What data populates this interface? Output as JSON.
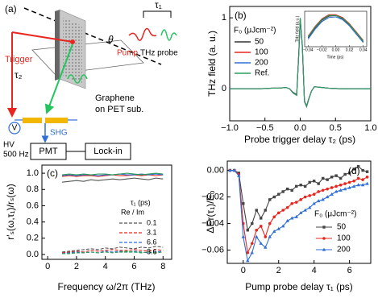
{
  "diagram": {
    "panel_label": "(a)",
    "tau1": "τ₁",
    "theta": "θ",
    "pump": "Pump",
    "thz_probe": "THz probe",
    "trigger": "Trigger",
    "tau2": "τ₂",
    "sample": [
      "Graphene",
      "on PET sub."
    ],
    "shg": "SHG",
    "voltage": "V",
    "hv": "HV",
    "frequency": "500 Hz",
    "pmt": "PMT",
    "lockin": "Lock-in"
  },
  "chart_data": [
    {
      "type": "line",
      "panel_label": "(b)",
      "xlabel": "Probe trigger delay τ₂ (ps)",
      "ylabel": "THz field (a. u.)",
      "legend_title": "F₀ (μJcm⁻²)",
      "x": [
        -1.0,
        -0.8,
        -0.6,
        -0.4,
        -0.3,
        -0.2,
        -0.15,
        -0.1,
        -0.05,
        -0.02,
        0,
        0.03,
        0.06,
        0.09,
        0.12,
        0.16,
        0.2,
        0.3,
        0.4,
        0.6,
        0.8,
        1.0
      ],
      "series": [
        {
          "name": "50",
          "color": "#333333",
          "values": [
            0,
            0,
            0,
            0.01,
            0.01,
            0.02,
            0,
            -0.05,
            -0.08,
            0.52,
            0.99,
            0.6,
            -0.17,
            -0.24,
            -0.14,
            -0.03,
            0.03,
            0.02,
            0.01,
            0,
            0,
            0
          ]
        },
        {
          "name": "100",
          "color": "#e8261f",
          "values": [
            0,
            0,
            0,
            0.01,
            0.01,
            0.02,
            0,
            -0.06,
            -0.09,
            0.5,
            0.98,
            0.6,
            -0.18,
            -0.25,
            -0.15,
            -0.03,
            0.03,
            0.02,
            0.01,
            0,
            0,
            0
          ]
        },
        {
          "name": "200",
          "color": "#2f6fd6",
          "values": [
            0,
            0,
            0,
            0.01,
            0.01,
            0.02,
            0,
            -0.06,
            -0.09,
            0.49,
            0.97,
            0.59,
            -0.18,
            -0.25,
            -0.15,
            -0.03,
            0.03,
            0.02,
            0.01,
            0,
            0,
            0
          ]
        },
        {
          "name": "Ref.",
          "color": "#2a9d5c",
          "values": [
            0,
            0,
            0,
            0.01,
            0.01,
            0.02,
            0,
            -0.06,
            -0.09,
            0.5,
            1.0,
            0.62,
            -0.18,
            -0.25,
            -0.15,
            -0.03,
            0.03,
            0.02,
            0.01,
            0,
            0,
            0
          ]
        }
      ],
      "xlim": [
        -1.0,
        1.0
      ],
      "xticks": [
        {
          "value": -1,
          "label": "−1.0"
        },
        {
          "value": -0.5,
          "label": "−0.5"
        },
        {
          "value": 0,
          "label": "0.0"
        },
        {
          "value": 0.5,
          "label": "0.5"
        },
        {
          "value": 1,
          "label": "1.0"
        }
      ],
      "ylim": [
        -0.45,
        1.16
      ],
      "yticks": [
        0,
        1
      ]
    },
    {
      "type": "line",
      "xlabel": "Time (ps)",
      "ylabel": "THz field (a.u.)",
      "x": [
        -0.04,
        -0.03,
        -0.02,
        -0.01,
        0,
        0.01,
        0.02,
        0.03,
        0.04
      ],
      "series": [
        {
          "color": "#333333",
          "values": [
            0.68,
            0.82,
            0.93,
            0.99,
            1.0,
            0.95,
            0.86,
            0.74,
            0.62
          ]
        },
        {
          "color": "#e8261f",
          "values": [
            0.7,
            0.84,
            0.95,
            1.01,
            1.01,
            0.97,
            0.88,
            0.76,
            0.64
          ]
        },
        {
          "color": "#2f6fd6",
          "values": [
            0.66,
            0.8,
            0.91,
            0.97,
            0.98,
            0.94,
            0.85,
            0.73,
            0.61
          ]
        },
        {
          "color": "#2a9d5c",
          "values": [
            0.69,
            0.83,
            0.94,
            1.0,
            1.0,
            0.96,
            0.87,
            0.75,
            0.63
          ]
        }
      ],
      "xlim": [
        -0.045,
        0.045
      ],
      "xticks": [
        {
          "value": -0.04,
          "label": "−0.04"
        },
        {
          "value": -0.02,
          "label": "−0.02"
        },
        {
          "value": 0,
          "label": "0.00"
        },
        {
          "value": 0.02,
          "label": "0.02"
        },
        {
          "value": 0.04,
          "label": "0.04"
        }
      ],
      "ylim": [
        0.55,
        1.06
      ]
    },
    {
      "type": "line",
      "panel_label": "(c)",
      "xlabel": "Frequency ω/2π (THz)",
      "ylabel": "r′ₛ(ω,τ₁)/rₛ(ω)",
      "legend_title": "τ₁ (ps)",
      "legend_subtitle": "Re / Im",
      "x": [
        1,
        1.5,
        2,
        2.5,
        3,
        3.5,
        4,
        4.5,
        5,
        5.5,
        6,
        6.5,
        7,
        7.5,
        8
      ],
      "series": [
        {
          "name": "0.1",
          "color": "#555555",
          "values": [
            0.89,
            0.9,
            0.91,
            0.9,
            0.92,
            0.91,
            0.92,
            0.93,
            0.92,
            0.93,
            0.94,
            0.93,
            0.92,
            0.94,
            0.93
          ],
          "im": [
            0.03,
            0.04,
            0.05,
            0.06,
            0.07,
            0.06,
            0.08,
            0.07,
            0.09,
            0.08,
            0.07,
            0.09,
            0.08,
            0.1,
            0.09
          ]
        },
        {
          "name": "3.1",
          "color": "#e8261f",
          "values": [
            0.96,
            0.97,
            0.96,
            0.97,
            0.97,
            0.96,
            0.97,
            0.98,
            0.97,
            0.97,
            0.98,
            0.97,
            0.98,
            0.97,
            0.98
          ],
          "im": [
            0.02,
            0.03,
            0.04,
            0.03,
            0.05,
            0.04,
            0.05,
            0.06,
            0.05,
            0.05,
            0.06,
            0.05,
            0.04,
            0.06,
            0.05
          ]
        },
        {
          "name": "6.6",
          "color": "#2f6fd6",
          "values": [
            0.97,
            0.98,
            0.97,
            0.98,
            0.98,
            0.97,
            0.98,
            0.98,
            0.99,
            0.98,
            0.98,
            0.99,
            0.98,
            0.99,
            0.98
          ],
          "im": [
            0.01,
            0.02,
            0.03,
            0.02,
            0.03,
            0.02,
            0.04,
            0.03,
            0.04,
            0.03,
            0.04,
            0.03,
            0.02,
            0.03,
            0.04
          ]
        },
        {
          "name": "8.6",
          "color": "#2a9d5c",
          "values": [
            0.98,
            0.99,
            0.98,
            0.99,
            0.98,
            0.99,
            0.99,
            0.98,
            0.99,
            1.0,
            0.99,
            0.98,
            0.99,
            1.0,
            0.99
          ],
          "im": [
            0.01,
            0.01,
            0.02,
            0.02,
            0.03,
            0.02,
            0.03,
            0.02,
            0.03,
            0.04,
            0.03,
            0.02,
            0.03,
            0.02,
            0.03
          ]
        }
      ],
      "xlim": [
        -0.4,
        8.6
      ],
      "xticks": [
        0,
        2,
        4,
        6,
        8
      ],
      "ylim": [
        -0.06,
        1.1
      ],
      "yticks": [
        {
          "value": 0,
          "label": "0.0"
        },
        0.2,
        0.4,
        0.6,
        0.8,
        {
          "value": 1,
          "label": "1.0"
        }
      ]
    },
    {
      "type": "line",
      "panel_label": "(d)",
      "xlabel": "Pump probe delay τ₁ (ps)",
      "ylabel": "ΔEr(τ₁)/E₀",
      "legend_title": "F₀ (μJcm⁻²)",
      "x": [
        -0.75,
        -0.5,
        -0.25,
        0,
        0.25,
        0.5,
        0.75,
        1,
        1.25,
        1.5,
        1.75,
        2,
        2.25,
        2.5,
        2.75,
        3,
        3.25,
        3.5,
        3.75,
        4,
        4.25,
        4.5,
        4.75,
        5,
        5.25,
        5.5,
        5.75,
        6,
        6.25,
        6.5,
        6.75,
        7
      ],
      "series": [
        {
          "name": "50",
          "color": "#444444",
          "marker": "square",
          "values": [
            0,
            0,
            -0.002,
            -0.025,
            -0.045,
            -0.04,
            -0.03,
            -0.036,
            -0.03,
            -0.022,
            -0.02,
            -0.018,
            -0.016,
            -0.014,
            -0.015,
            -0.012,
            -0.011,
            -0.012,
            -0.009,
            -0.008,
            -0.01,
            -0.006,
            -0.007,
            -0.005,
            -0.004,
            -0.006,
            -0.003,
            -0.002,
            0.001,
            0.003,
            0,
            -0.001
          ]
        },
        {
          "name": "100",
          "color": "#e8261f",
          "marker": "circle",
          "values": [
            0,
            0,
            -0.003,
            -0.04,
            -0.062,
            -0.055,
            -0.045,
            -0.042,
            -0.05,
            -0.04,
            -0.035,
            -0.032,
            -0.03,
            -0.028,
            -0.025,
            -0.024,
            -0.022,
            -0.02,
            -0.019,
            -0.018,
            -0.016,
            -0.015,
            -0.014,
            -0.013,
            -0.012,
            -0.011,
            -0.01,
            -0.009,
            -0.008,
            -0.006,
            -0.007,
            -0.005
          ]
        },
        {
          "name": "200",
          "color": "#2f6fd6",
          "marker": "triangle",
          "values": [
            0,
            0,
            -0.004,
            -0.05,
            -0.068,
            -0.062,
            -0.05,
            -0.055,
            -0.058,
            -0.05,
            -0.046,
            -0.044,
            -0.042,
            -0.038,
            -0.036,
            -0.035,
            -0.032,
            -0.03,
            -0.028,
            -0.025,
            -0.023,
            -0.022,
            -0.02,
            -0.018,
            -0.016,
            -0.015,
            -0.014,
            -0.013,
            -0.012,
            -0.011,
            -0.011,
            -0.01
          ]
        }
      ],
      "xlim": [
        -0.9,
        7.2
      ],
      "xticks": [
        0,
        2,
        4,
        6
      ],
      "ylim": [
        -0.07,
        0.007
      ],
      "yticks": [
        {
          "value": 0,
          "label": "0.00"
        },
        {
          "value": -0.02,
          "label": "−0.02"
        },
        {
          "value": -0.04,
          "label": "−0.04"
        },
        {
          "value": -0.06,
          "label": "−0.06"
        }
      ]
    }
  ]
}
